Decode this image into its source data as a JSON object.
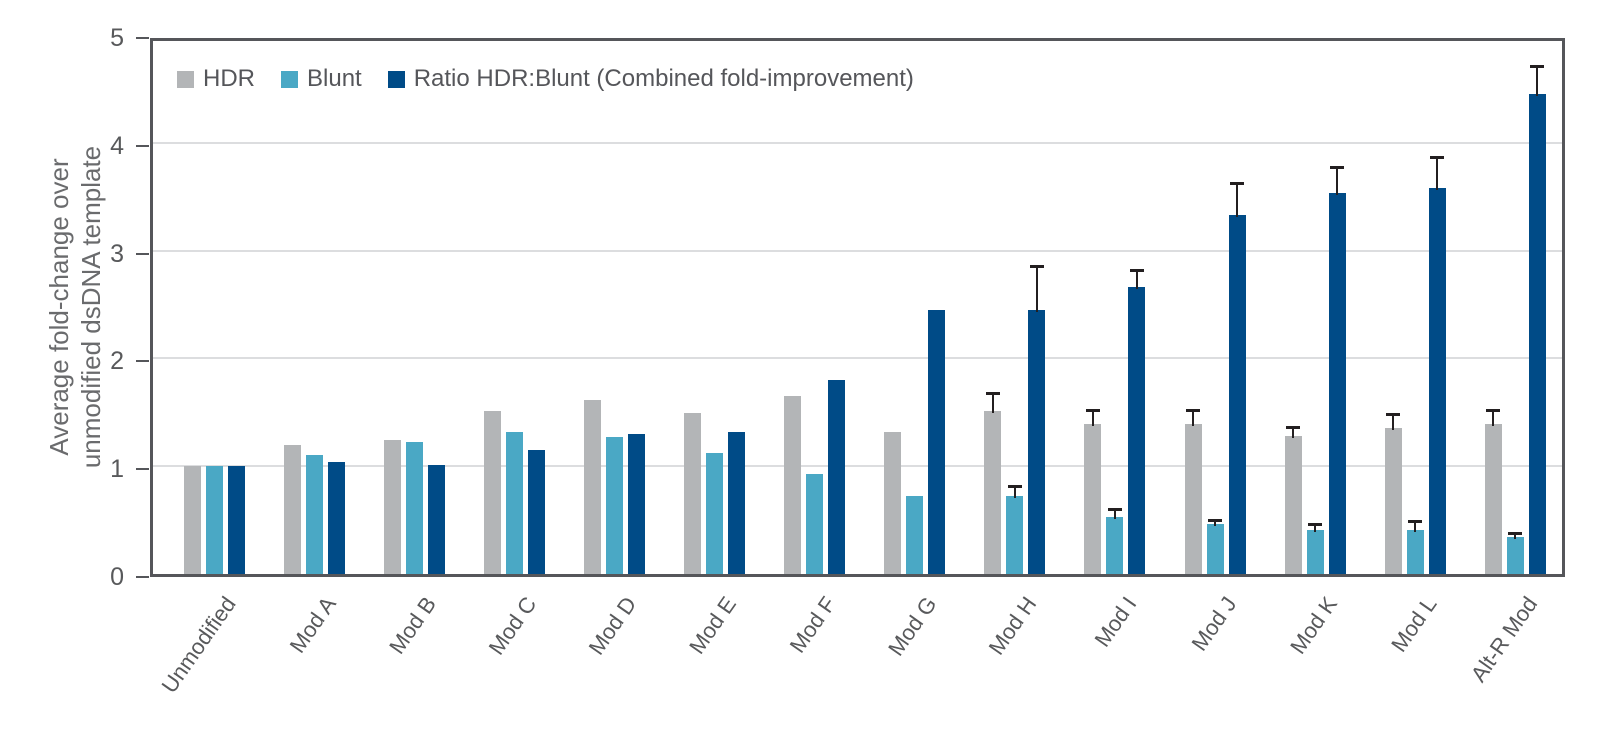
{
  "chart_data": {
    "type": "bar",
    "title": "",
    "ylabel": "Average fold-change over unmodified dsDNA template",
    "ylabel_lines": [
      "Average fold-change over",
      "unmodified dsDNA template"
    ],
    "xlabel": "",
    "ylim": [
      0,
      5
    ],
    "yticks": [
      0,
      1,
      2,
      3,
      4,
      5
    ],
    "grid": true,
    "legend_position": "top-left-inside",
    "categories": [
      "Unmodified",
      "Mod A",
      "Mod B",
      "Mod C",
      "Mod D",
      "Mod E",
      "Mod F",
      "Mod G",
      "Mod H",
      "Mod I",
      "Mod J",
      "Mod K",
      "Mod L",
      "Alt-R Mod"
    ],
    "series": [
      {
        "name": "HDR",
        "color": "#b3b5b7",
        "values": [
          1.0,
          1.2,
          1.24,
          1.51,
          1.61,
          1.49,
          1.65,
          1.32,
          1.51,
          1.39,
          1.39,
          1.28,
          1.35,
          1.39
        ],
        "errors_plus": [
          0,
          0,
          0,
          0,
          0,
          0,
          0,
          0,
          0.17,
          0.13,
          0.13,
          0.08,
          0.13,
          0.13
        ]
      },
      {
        "name": "Blunt",
        "color": "#4aa8c5",
        "values": [
          1.0,
          1.1,
          1.22,
          1.32,
          1.27,
          1.12,
          0.93,
          0.72,
          0.72,
          0.53,
          0.46,
          0.41,
          0.41,
          0.34
        ],
        "errors_plus": [
          0,
          0,
          0,
          0,
          0,
          0,
          0,
          0,
          0.1,
          0.07,
          0.04,
          0.05,
          0.08,
          0.04
        ]
      },
      {
        "name": "Ratio HDR:Blunt (Combined fold-improvement)",
        "color": "#004b87",
        "values": [
          1.0,
          1.04,
          1.01,
          1.15,
          1.3,
          1.32,
          1.8,
          2.45,
          2.45,
          2.66,
          3.33,
          3.53,
          3.58,
          4.45
        ],
        "errors_plus": [
          0,
          0,
          0,
          0,
          0,
          0,
          0,
          0,
          0.41,
          0.16,
          0.3,
          0.25,
          0.29,
          0.26
        ]
      }
    ],
    "error_bar_color": "#231f20"
  },
  "colors": {
    "axis_border": "#55565a",
    "gridline": "#dcdddf",
    "tick_text": "#58595b",
    "axis_label_text": "#6a6b6d",
    "legend_text": "#55565a",
    "background": "#ffffff"
  }
}
